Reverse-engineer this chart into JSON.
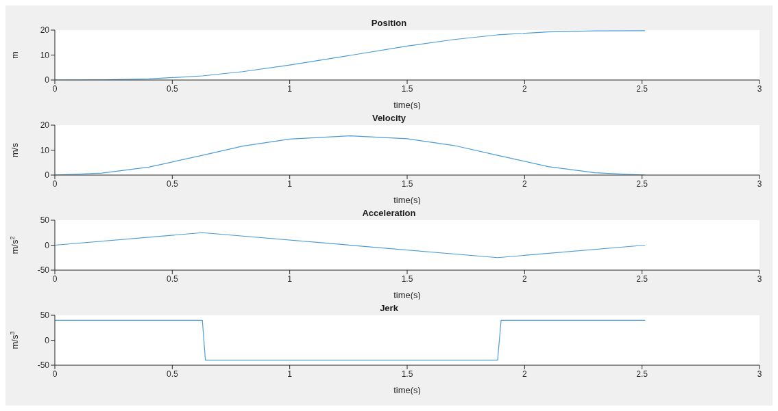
{
  "chart_data": [
    {
      "type": "line",
      "title": "Position",
      "xlabel": "time(s)",
      "ylabel": "m",
      "x": [
        0,
        0.2,
        0.4,
        0.628,
        0.8,
        1.0,
        1.257,
        1.5,
        1.7,
        1.885,
        2.1,
        2.3,
        2.513
      ],
      "values": [
        0,
        0.05,
        0.43,
        1.65,
        3.35,
        5.98,
        9.87,
        13.58,
        16.24,
        18.09,
        19.27,
        19.68,
        19.74
      ],
      "color": "#4d9cd6",
      "xlim": [
        0,
        3
      ],
      "xticks": [
        0,
        0.5,
        1,
        1.5,
        2,
        2.5,
        3
      ],
      "ylim": [
        0,
        20
      ],
      "yticks": [
        0,
        10,
        20
      ],
      "marker": "none"
    },
    {
      "type": "line",
      "title": "Velocity",
      "xlabel": "time(s)",
      "ylabel": "m/s",
      "x": [
        0,
        0.2,
        0.4,
        0.628,
        0.8,
        1.0,
        1.257,
        1.5,
        1.7,
        1.885,
        2.1,
        2.3,
        2.513
      ],
      "values": [
        0,
        0.8,
        3.2,
        7.89,
        11.6,
        14.42,
        15.71,
        14.55,
        11.84,
        7.89,
        3.41,
        0.91,
        0
      ],
      "color": "#4d9cd6",
      "xlim": [
        0,
        3
      ],
      "xticks": [
        0,
        0.5,
        1,
        1.5,
        2,
        2.5,
        3
      ],
      "ylim": [
        0,
        20
      ],
      "yticks": [
        0,
        10,
        20
      ],
      "marker": "none"
    },
    {
      "type": "line",
      "title": "Acceleration",
      "xlabel": "time(s)",
      "ylabel": "m/s$^{2}$",
      "x": [
        0,
        0.628,
        1.885,
        2.513
      ],
      "values": [
        0,
        25,
        -25,
        0
      ],
      "color": "#4d9cd6",
      "xlim": [
        0,
        3
      ],
      "xticks": [
        0,
        0.5,
        1,
        1.5,
        2,
        2.5,
        3
      ],
      "ylim": [
        -50,
        50
      ],
      "yticks": [
        -50,
        0,
        50
      ],
      "marker": "none"
    },
    {
      "type": "line",
      "title": "Jerk",
      "xlabel": "time(s)",
      "ylabel": "m/s$^{3}$",
      "x": [
        0,
        0.628,
        0.641,
        1.885,
        1.9,
        2.513
      ],
      "values": [
        40,
        40,
        -40,
        -40,
        40,
        40
      ],
      "color": "#4d9cd6",
      "xlim": [
        0,
        3
      ],
      "xticks": [
        0,
        0.5,
        1,
        1.5,
        2,
        2.5,
        3
      ],
      "ylim": [
        -50,
        50
      ],
      "yticks": [
        -50,
        0,
        50
      ],
      "marker": "none"
    }
  ]
}
